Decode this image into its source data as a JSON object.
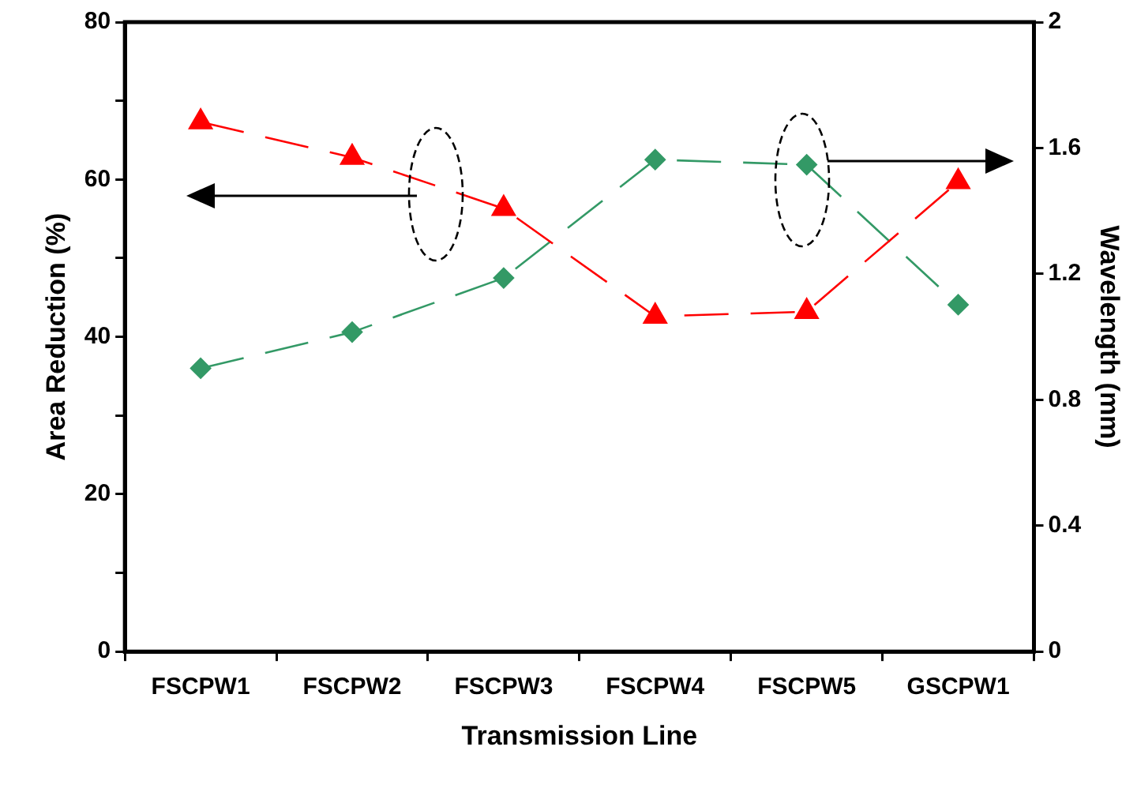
{
  "chart_data": {
    "type": "line",
    "xlabel": "Transmission Line",
    "ylabel": "Area Reduction (%)",
    "y2label": "Wavelength (mm)",
    "categories": [
      "FSCPW1",
      "FSCPW2",
      "FSCPW3",
      "FSCPW4",
      "FSCPW5",
      "GSCPW1"
    ],
    "series": [
      {
        "color": "#ff0000",
        "marker": "triangle",
        "values": [
          67.3,
          62.8,
          56.3,
          42.6,
          43.2,
          59.7
        ]
      },
      {
        "color": "#339966",
        "marker": "diamond",
        "axis": "y2",
        "values": [
          0.9,
          1.015,
          1.187,
          1.563,
          1.547,
          1.102
        ]
      }
    ],
    "ylim": [
      0,
      80
    ],
    "yticks": [
      0,
      {
        "value": 10,
        "label": null
      },
      20,
      {
        "value": 30,
        "label": null
      },
      40,
      {
        "value": 50,
        "label": null
      },
      60,
      {
        "value": 70,
        "label": null
      },
      80
    ],
    "y2lim": [
      0,
      2
    ],
    "y2ticks": [
      0,
      0.4,
      0.8,
      1.2,
      1.6,
      2
    ],
    "grid": false,
    "legend": false,
    "line_style": "dashed"
  }
}
